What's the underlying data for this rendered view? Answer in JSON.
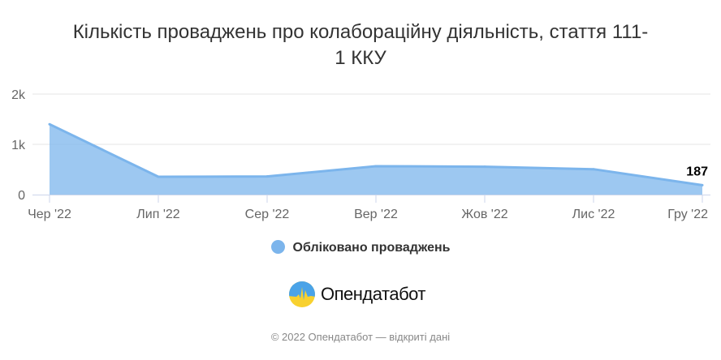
{
  "chart_data": {
    "type": "area",
    "title": "Кількість проваджень про колабораційну діяльність, стаття 111-1 ККУ",
    "title_lines": [
      "Кількість проваджень про колабораційну діяльність, стаття 111-",
      "1 ККУ"
    ],
    "categories": [
      "Чер '22",
      "Лип '22",
      "Сер '22",
      "Вер '22",
      "Жов '22",
      "Лис '22",
      "Гру '22"
    ],
    "series": [
      {
        "name": "Обліковано проваджень",
        "values": [
          1400,
          355,
          360,
          565,
          555,
          505,
          187
        ],
        "color": "#7cb5ec"
      }
    ],
    "data_labels": [
      {
        "index": 6,
        "text": "187"
      }
    ],
    "ylim": [
      0,
      2000
    ],
    "yticks": [
      0,
      1000,
      2000
    ],
    "ytick_labels": [
      "0",
      "1k",
      "2k"
    ],
    "grid": true,
    "legend": "bottom-center",
    "xlabel": "",
    "ylabel": ""
  },
  "logo": {
    "text": "Опендатабот"
  },
  "footer": "© 2022 Опендатабот — відкриті дані"
}
